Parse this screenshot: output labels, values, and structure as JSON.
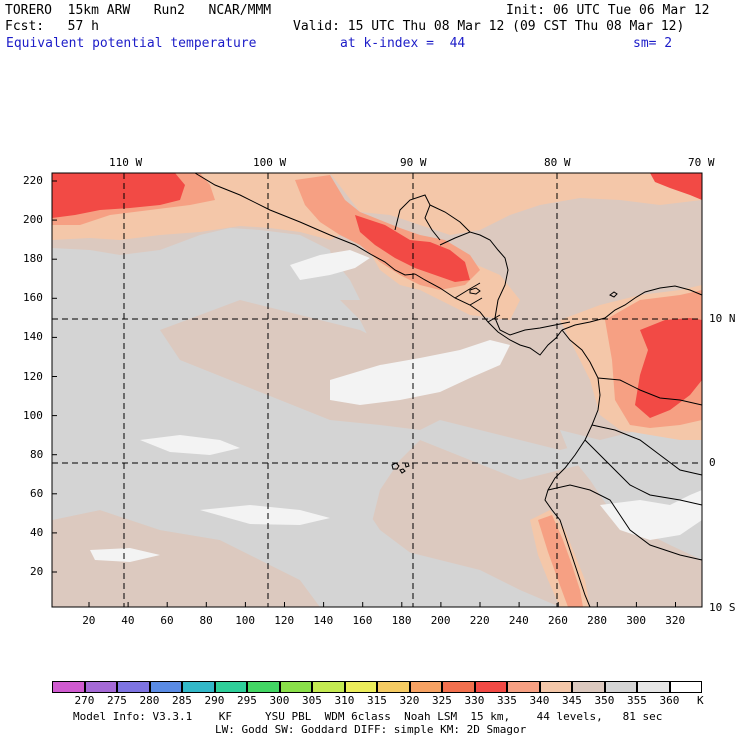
{
  "header": {
    "model": "TORERO  15km ARW   Run2   NCAR/MMM",
    "init": "Init: 06 UTC Tue 06 Mar 12",
    "fcst": "Fcst:   57 h",
    "valid": "Valid: 15 UTC Thu 08 Mar 12 (09 CST Thu 08 Mar 12)",
    "field": "Equivalent potential temperature",
    "level": "at k-index =  44",
    "smooth": "sm= 2"
  },
  "map": {
    "lon_labels": [
      "110 W",
      "100 W",
      "90 W",
      "80 W",
      "70 W"
    ],
    "lat_labels": [
      "10 N",
      "0",
      "10 S"
    ],
    "y_ticks": [
      "220",
      "200",
      "180",
      "160",
      "140",
      "120",
      "100",
      "80",
      "60",
      "40",
      "20"
    ],
    "x_ticks": [
      "20",
      "40",
      "60",
      "80",
      "100",
      "120",
      "140",
      "160",
      "180",
      "200",
      "220",
      "240",
      "260",
      "280",
      "300",
      "320"
    ],
    "colors": {
      "pale": "#f3f3f3",
      "grey": "#d4d4d4",
      "tan": "#dcc9bf",
      "peach": "#f4c7a9",
      "salmon": "#f6a083",
      "red": "#f24a45",
      "coast": "#000000"
    }
  },
  "colorbar": {
    "labels": [
      "270",
      "275",
      "280",
      "285",
      "290",
      "295",
      "300",
      "305",
      "310",
      "315",
      "320",
      "325",
      "330",
      "335",
      "340",
      "345",
      "350",
      "355",
      "360"
    ],
    "unit": "K",
    "colors": [
      "#d05bd0",
      "#a56ad6",
      "#7e74e2",
      "#5a8be4",
      "#33b8c8",
      "#2fcf9a",
      "#43d664",
      "#8ae04a",
      "#c4ea52",
      "#eced5c",
      "#f5cb63",
      "#f6a263",
      "#f2704e",
      "#f24a45",
      "#f6a083",
      "#f4c7a9",
      "#dcc9bf",
      "#d4d4d4",
      "#e6e6e6",
      "#ffffff"
    ]
  },
  "footer": {
    "line1": "Model Info: V3.3.1    KF     YSU PBL  WDM 6class  Noah LSM  15 km,    44 levels,   81 sec",
    "line2": "LW: Godd SW: Goddard DIFF: simple KM: 2D Smagor"
  }
}
